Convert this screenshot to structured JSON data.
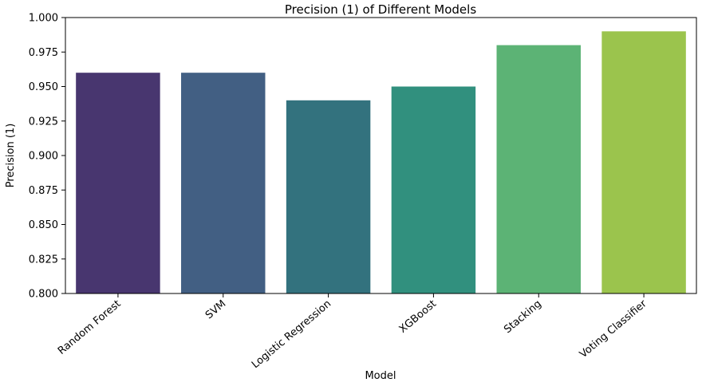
{
  "chart_data": {
    "type": "bar",
    "title": "Precision (1) of Different Models",
    "xlabel": "Model",
    "ylabel": "Precision (1)",
    "categories": [
      "Random Forest",
      "SVM",
      "Logistic Regression",
      "XGBoost",
      "Stacking",
      "Voting Classifier"
    ],
    "values": [
      0.96,
      0.96,
      0.94,
      0.95,
      0.98,
      0.99
    ],
    "colors": [
      "#48366f",
      "#425f83",
      "#33727e",
      "#31907e",
      "#5cb375",
      "#9bc44d"
    ],
    "ylim": [
      0.8,
      1.0
    ],
    "yticks": [
      "0.800",
      "0.825",
      "0.850",
      "0.875",
      "0.900",
      "0.925",
      "0.950",
      "0.975",
      "1.000"
    ],
    "grid": false,
    "legend": "none"
  }
}
